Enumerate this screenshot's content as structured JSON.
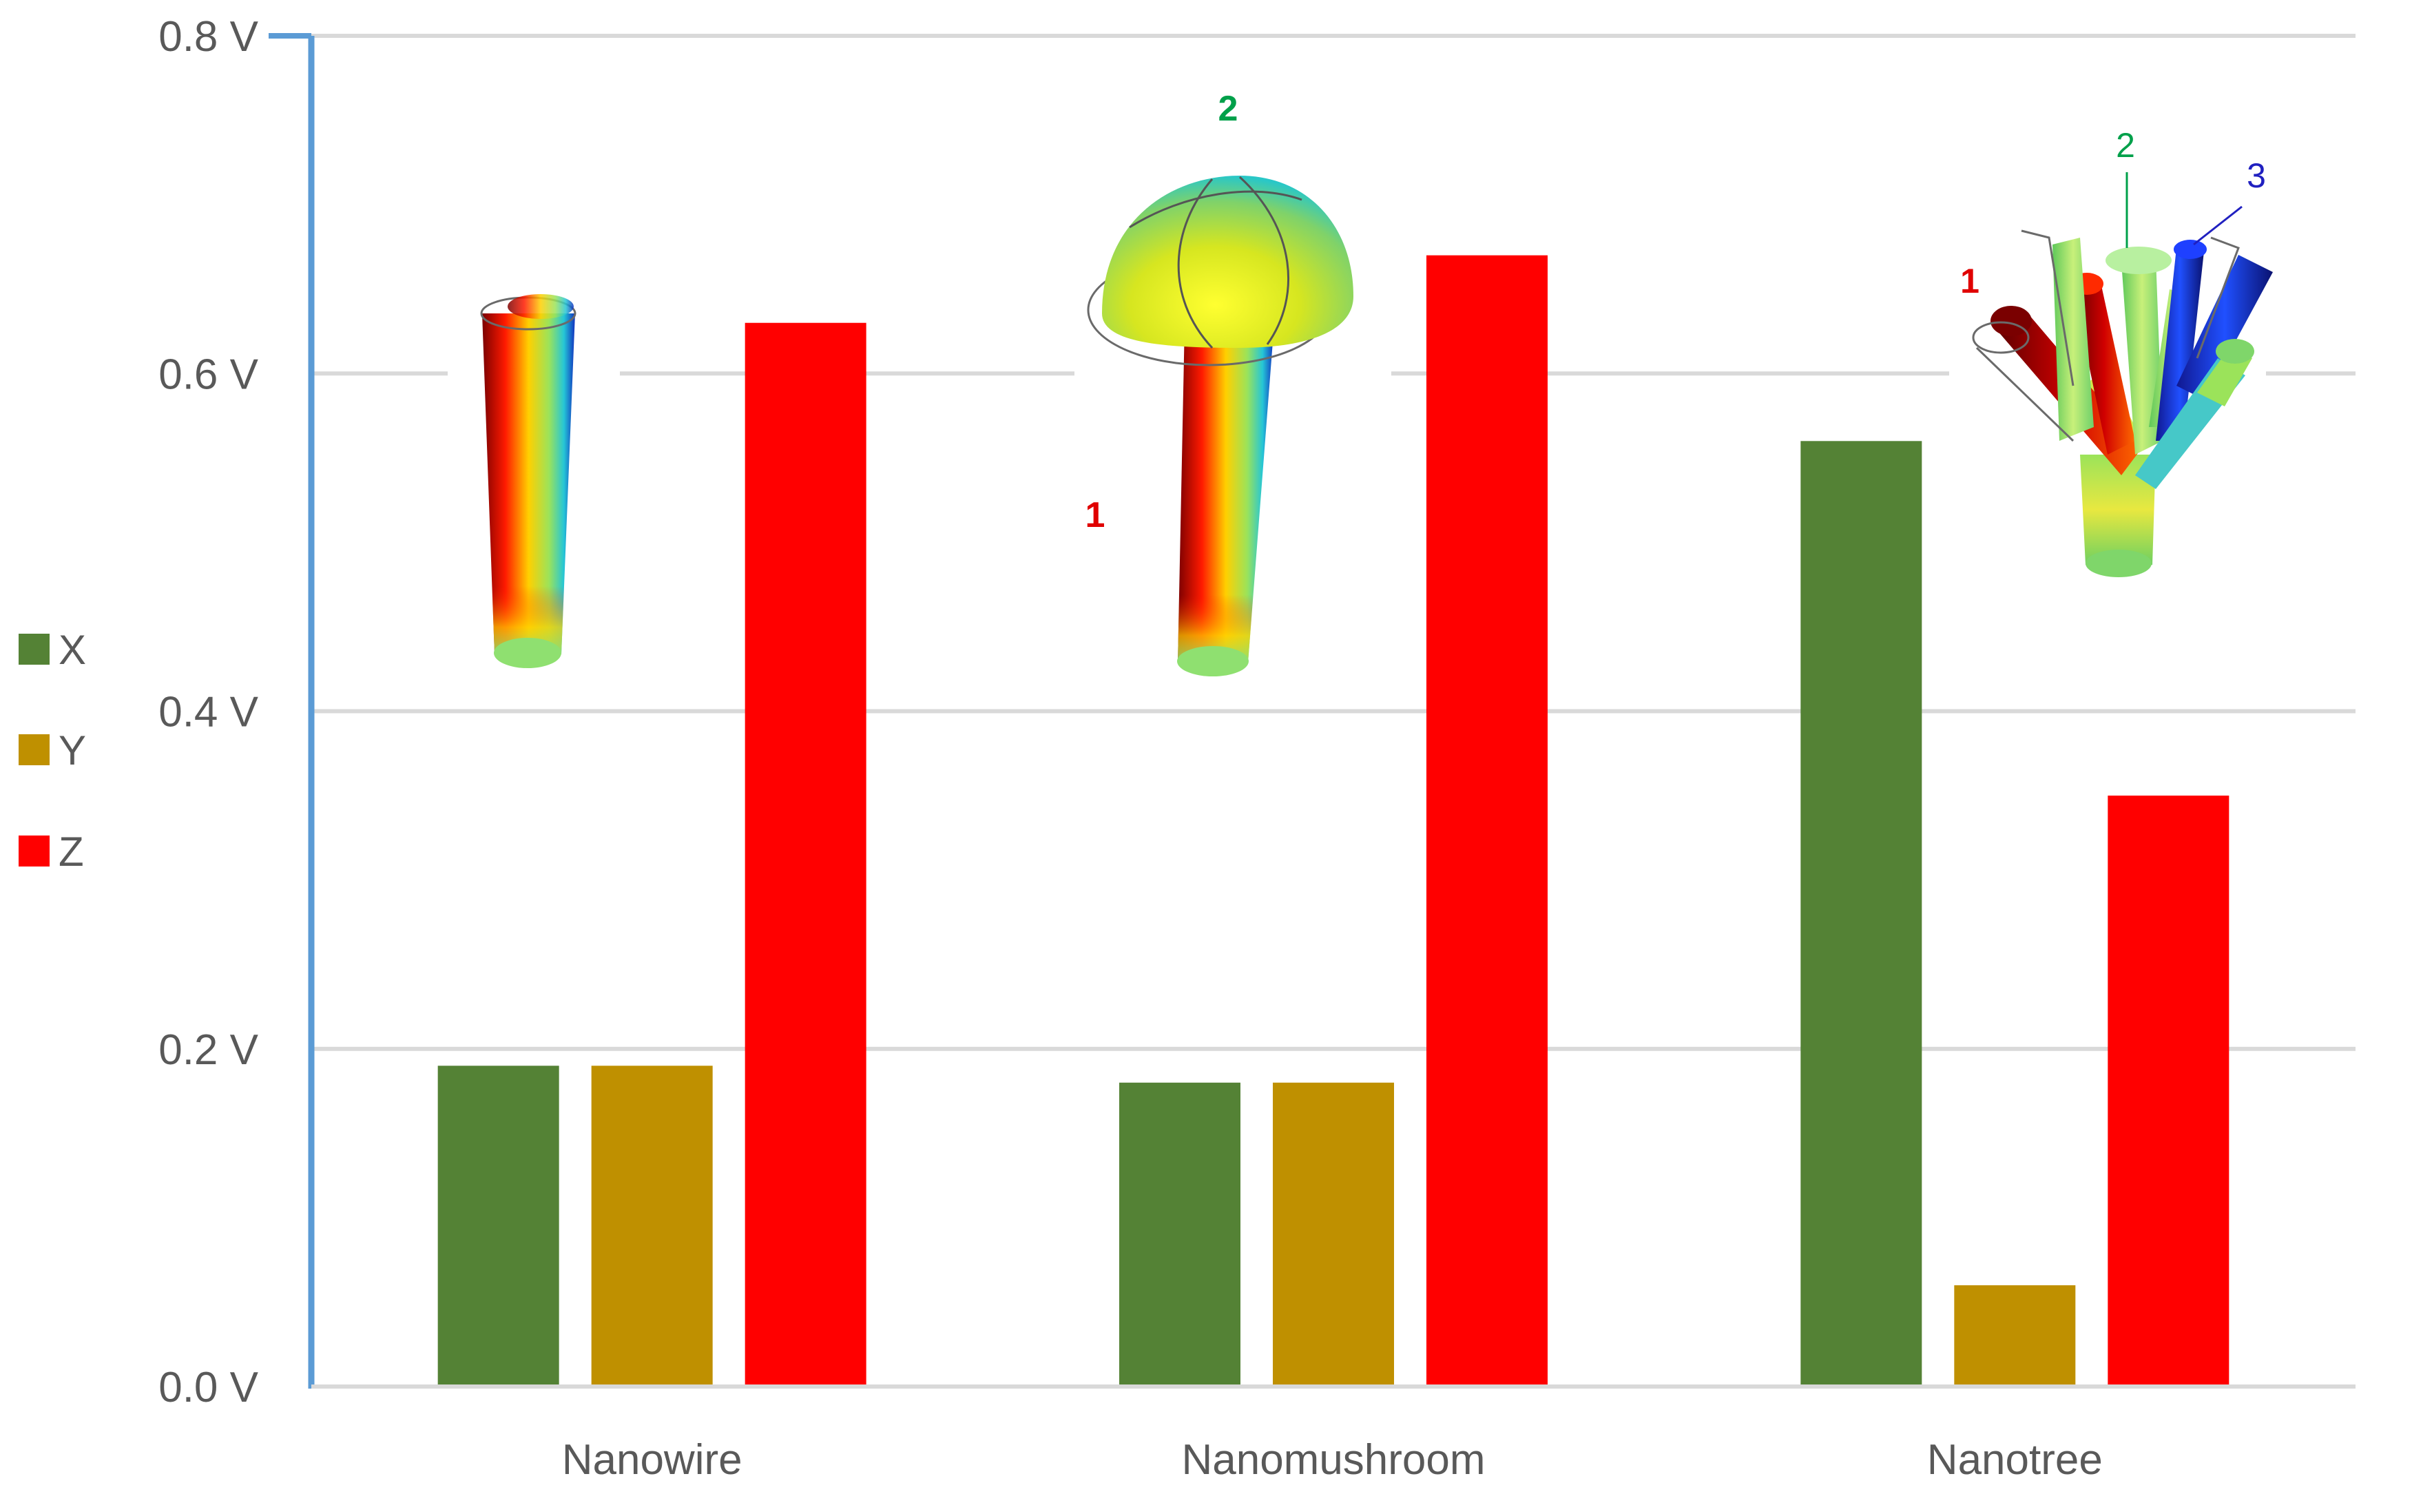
{
  "chart_data": {
    "type": "bar",
    "categories": [
      "Nanowire",
      "Nanomushroom",
      "Nanotree"
    ],
    "series": [
      {
        "name": "X",
        "color": "#548235",
        "values": [
          0.19,
          0.18,
          0.56
        ]
      },
      {
        "name": "Y",
        "color": "#BF9000",
        "values": [
          0.19,
          0.18,
          0.06
        ]
      },
      {
        "name": "Z",
        "color": "#FF0000",
        "values": [
          0.63,
          0.67,
          0.35
        ]
      }
    ],
    "y_ticks": [
      "0.0 V",
      "0.2 V",
      "0.4 V",
      "0.6 V",
      "0.8 V"
    ],
    "y_tick_values": [
      0,
      0.2,
      0.4,
      0.6,
      0.8
    ],
    "ylim": [
      0,
      0.8
    ],
    "grid": true,
    "legend_position": "left",
    "axis_color": "#5B9BD5",
    "grid_color": "#D9D9D9",
    "insets": [
      {
        "name": "nanowire-inset",
        "labels": []
      },
      {
        "name": "nanomushroom-inset",
        "labels": [
          {
            "text": "1",
            "color": "#E00000"
          },
          {
            "text": "2",
            "color": "#00A04A"
          }
        ]
      },
      {
        "name": "nanotree-inset",
        "labels": [
          {
            "text": "1",
            "color": "#E00000"
          },
          {
            "text": "2",
            "color": "#00A04A"
          },
          {
            "text": "3",
            "color": "#2020C0"
          }
        ]
      }
    ]
  }
}
